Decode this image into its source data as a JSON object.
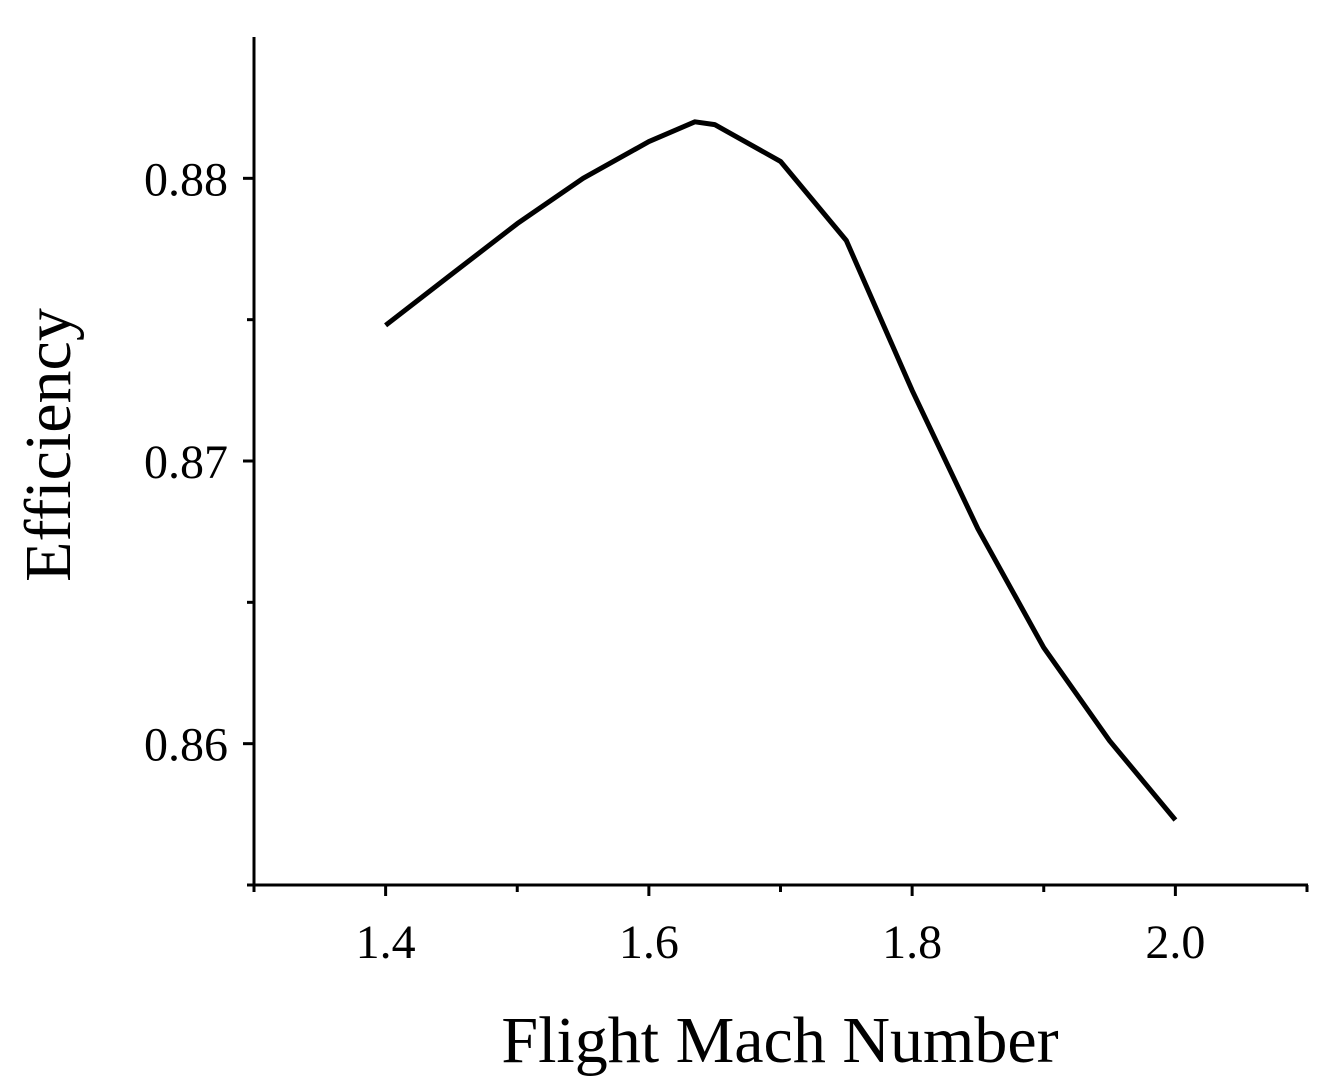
{
  "chart_data": {
    "type": "line",
    "x_label": "Flight Mach Number",
    "y_label": "Efficiency",
    "x": [
      1.4,
      1.45,
      1.5,
      1.55,
      1.6,
      1.635,
      1.65,
      1.7,
      1.75,
      1.8,
      1.85,
      1.9,
      1.95,
      2.0
    ],
    "series": [
      {
        "color": "#000000",
        "values": [
          0.8748,
          0.8766,
          0.8784,
          0.88,
          0.8813,
          0.882,
          0.8819,
          0.8806,
          0.8778,
          0.8725,
          0.8676,
          0.8634,
          0.8601,
          0.8573
        ]
      }
    ],
    "xlim": [
      1.3,
      2.1
    ],
    "ylim": [
      0.855,
      0.885
    ],
    "xticks": [
      1.4,
      1.6,
      1.8,
      {
        "value": 2,
        "label": "2.0"
      }
    ],
    "yticks": [
      0.86,
      0.87,
      0.88
    ],
    "xminorticks": [
      1.3,
      1.5,
      1.7,
      1.9,
      2.1
    ],
    "yminorticks": [
      0.855,
      0.865,
      0.875
    ]
  }
}
